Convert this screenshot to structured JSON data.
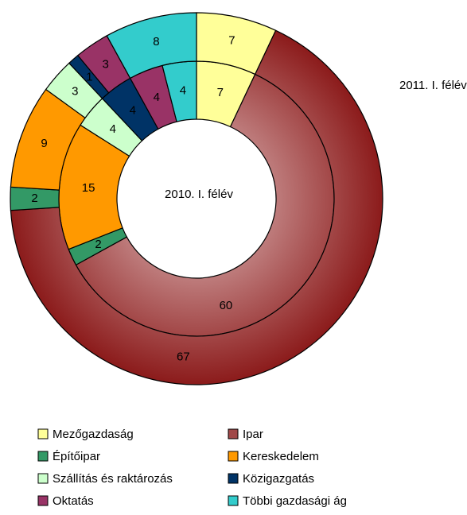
{
  "chart_data": {
    "type": "donut",
    "categories": [
      "Mezőgazdaság",
      "Ipar",
      "Építőipar",
      "Kereskedelem",
      "Szállítás és raktározás",
      "Közigazgatás",
      "Oktatás",
      "Többi gazdasági ág"
    ],
    "colors": [
      "#ffff99",
      "#8b1a1a",
      "#339966",
      "#ff9900",
      "#ccffcc",
      "#003366",
      "#993366",
      "#33cccc"
    ],
    "series": [
      {
        "name": "2010. I. félév",
        "values": [
          7,
          60,
          2,
          15,
          4,
          4,
          4,
          4
        ]
      },
      {
        "name": "2011. I. félév",
        "values": [
          7,
          67,
          2,
          9,
          3,
          1,
          3,
          8
        ]
      }
    ]
  }
}
